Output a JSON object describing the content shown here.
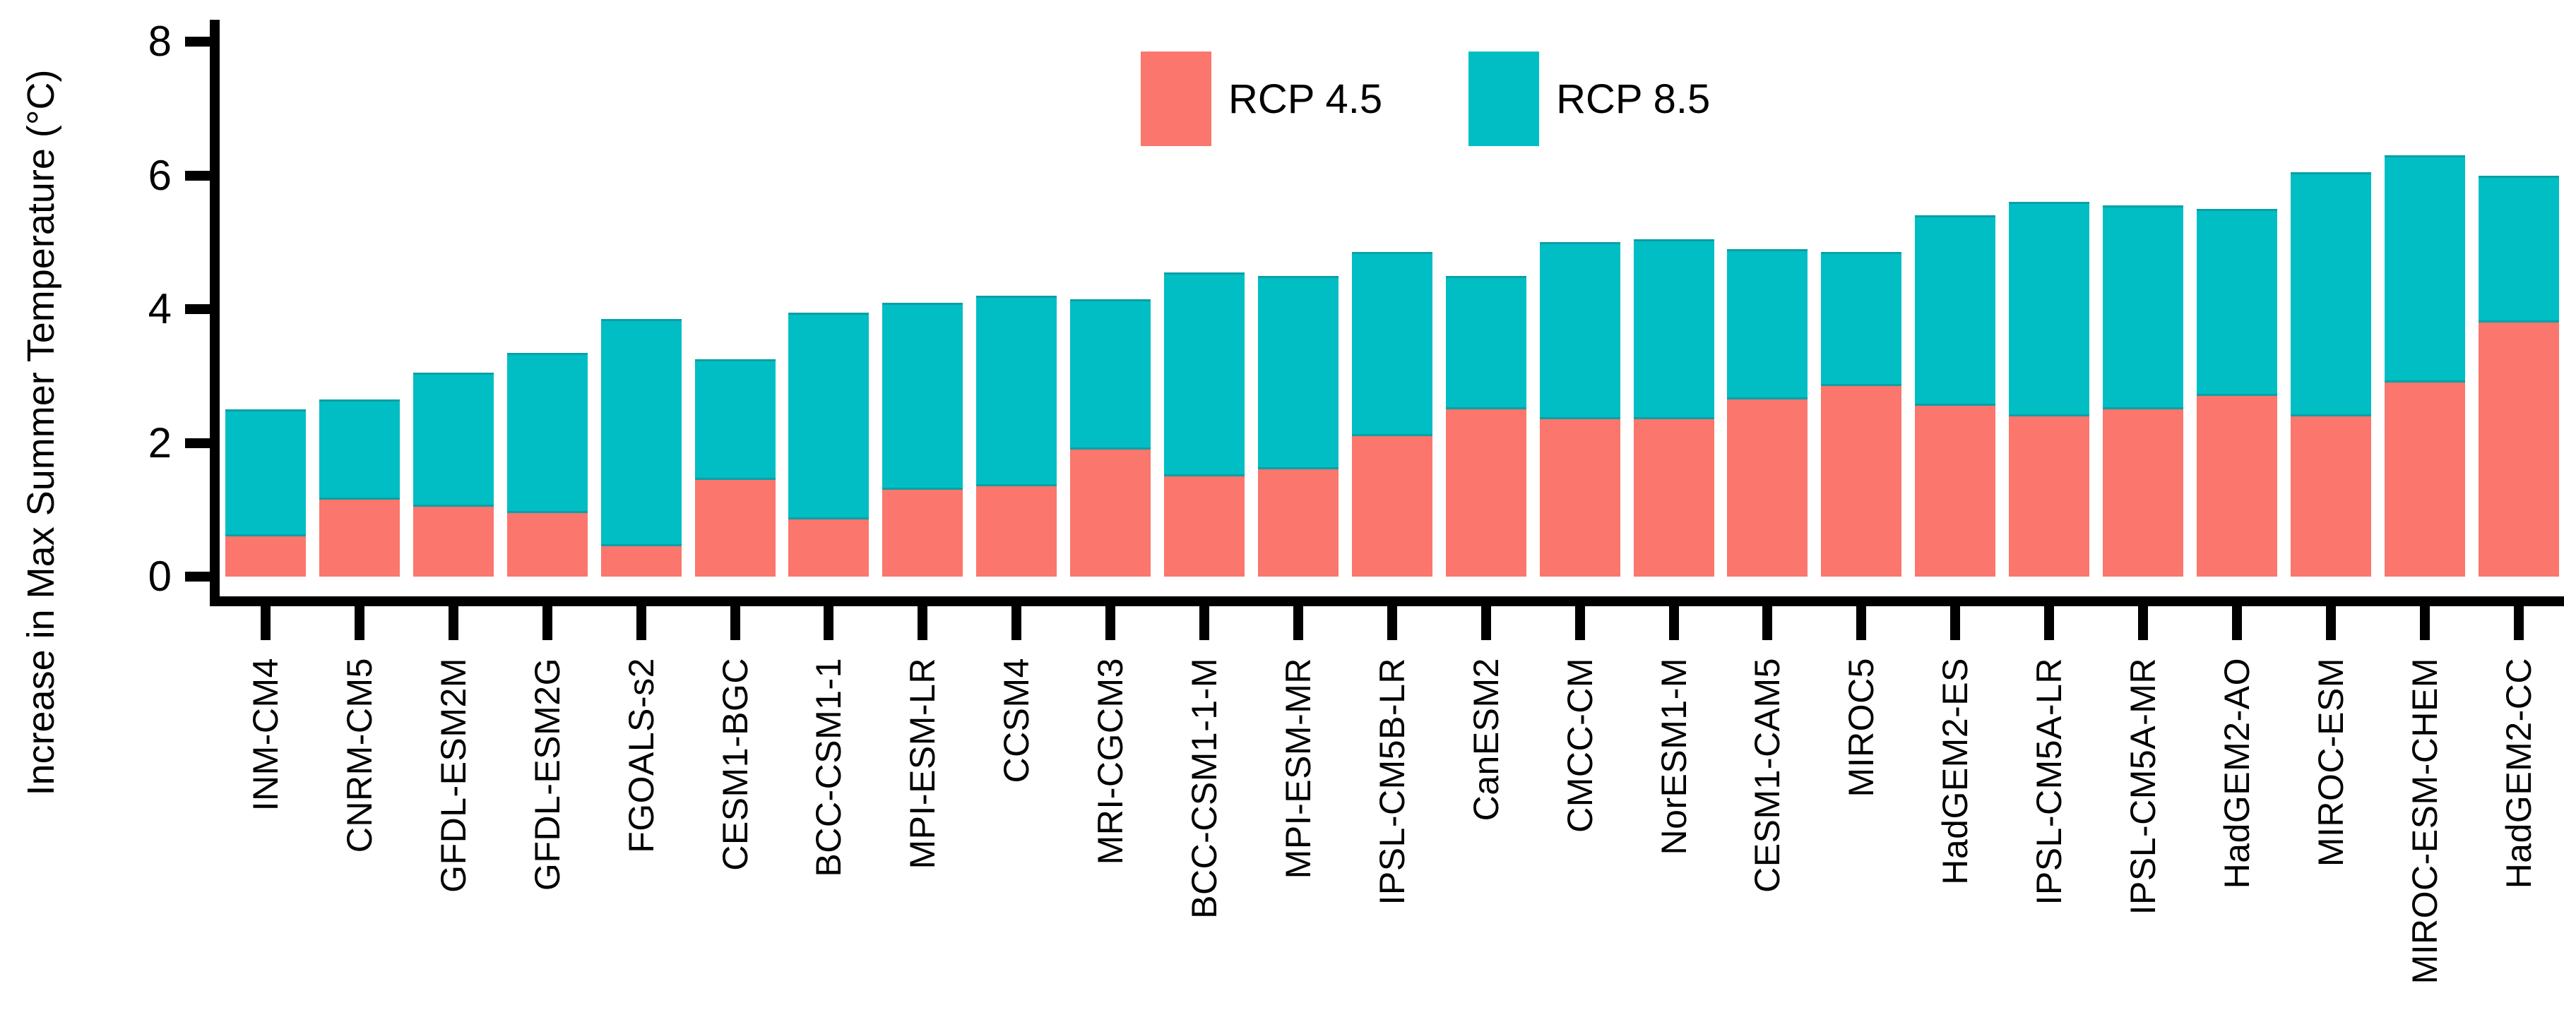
{
  "chart_data": {
    "type": "bar",
    "stacked": true,
    "title": "",
    "xlabel": "",
    "ylabel": "Increase in Max Summer Temperature (°C)",
    "ylim": [
      0,
      8
    ],
    "yticks": [
      0,
      2,
      4,
      6,
      8
    ],
    "grid": false,
    "legend_position": "top-center",
    "legend": [
      "RCP 4.5",
      "RCP 8.5"
    ],
    "colors": {
      "rcp45": "#FB766C",
      "rcp85": "#00BEC4",
      "rcp85_edge": "#0AA0A6",
      "axis": "#000000"
    },
    "categories": [
      "INM-CM4",
      "CNRM-CM5",
      "GFDL-ESM2M",
      "GFDL-ESM2G",
      "FGOALS-s2",
      "CESM1-BGC",
      "BCC-CSM1-1",
      "MPI-ESM-LR",
      "CCSM4",
      "MRI-CGCM3",
      "BCC-CSM1-1-M",
      "MPI-ESM-MR",
      "IPSL-CM5B-LR",
      "CanESM2",
      "CMCC-CM",
      "NorESM1-M",
      "CESM1-CAM5",
      "MIROC5",
      "HadGEM2-ES",
      "IPSL-CM5A-LR",
      "IPSL-CM5A-MR",
      "HadGEM2-AO",
      "MIROC-ESM",
      "MIROC-ESM-CHEM",
      "HadGEM2-CC"
    ],
    "series": [
      {
        "name": "RCP 4.5",
        "values": [
          0.6,
          1.15,
          1.05,
          0.95,
          0.45,
          1.45,
          0.85,
          1.3,
          1.35,
          1.9,
          1.5,
          1.6,
          2.1,
          2.5,
          2.35,
          2.35,
          2.65,
          2.85,
          2.55,
          2.4,
          2.5,
          2.7,
          2.4,
          2.9,
          3.8
        ]
      },
      {
        "name": "RCP 8.5",
        "values": [
          2.5,
          2.65,
          3.05,
          3.35,
          3.85,
          3.25,
          3.95,
          4.1,
          4.2,
          4.15,
          4.55,
          4.5,
          4.85,
          4.5,
          5.0,
          5.05,
          4.9,
          4.85,
          5.4,
          5.6,
          5.55,
          5.5,
          6.05,
          6.3,
          6.0
        ]
      }
    ],
    "series_note": "RCP 8.5 values are bar totals; teal segment spans from the RCP 4.5 value up to the RCP 8.5 value"
  }
}
